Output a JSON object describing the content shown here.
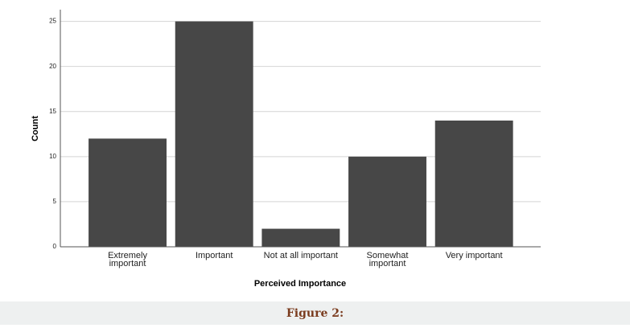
{
  "chart_data": {
    "type": "bar",
    "categories": [
      "Extremely important",
      "Important",
      "Not at all important",
      "Somewhat important",
      "Very important"
    ],
    "values": [
      12,
      25,
      2,
      10,
      14
    ],
    "color": "#474747",
    "xlabel": "Perceived Importance",
    "ylabel": "Count",
    "ylim": [
      0,
      26.3
    ],
    "yticks": [
      0,
      5,
      10,
      15,
      20,
      25
    ],
    "grid": true
  },
  "caption": "Figure 2:"
}
